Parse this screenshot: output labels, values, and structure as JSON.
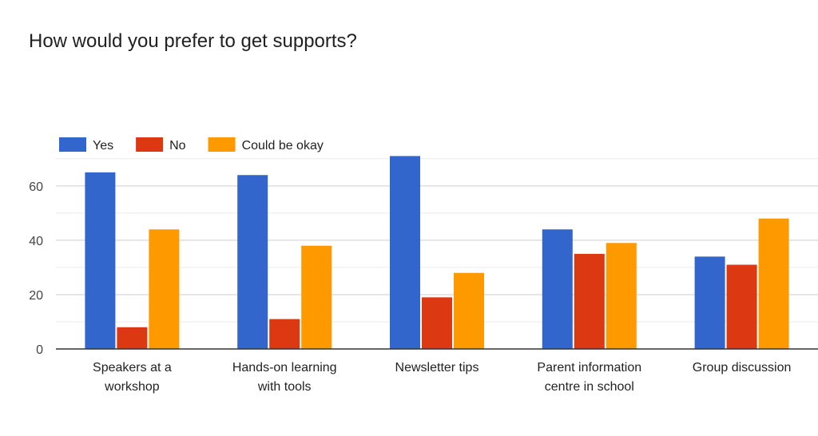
{
  "chart_data": {
    "type": "bar",
    "title": "How would you prefer to get supports?",
    "xlabel": "",
    "ylabel": "",
    "categories": [
      [
        "Speakers at a",
        "workshop"
      ],
      [
        "Hands-on learning",
        "with tools"
      ],
      [
        "Newsletter tips"
      ],
      [
        "Parent information",
        "centre in school"
      ],
      [
        "Group discussion"
      ]
    ],
    "series": [
      {
        "name": "Yes",
        "color": "#3366cc",
        "values": [
          65,
          64,
          71,
          44,
          34
        ]
      },
      {
        "name": "No",
        "color": "#dc3912",
        "values": [
          8,
          11,
          19,
          35,
          31
        ]
      },
      {
        "name": "Could be okay",
        "color": "#ff9900",
        "values": [
          44,
          38,
          28,
          39,
          48
        ]
      }
    ],
    "ylim": [
      0,
      72
    ],
    "yticks": [
      "0",
      "20",
      "40",
      "60"
    ],
    "grid": true,
    "legend": "top-left"
  }
}
